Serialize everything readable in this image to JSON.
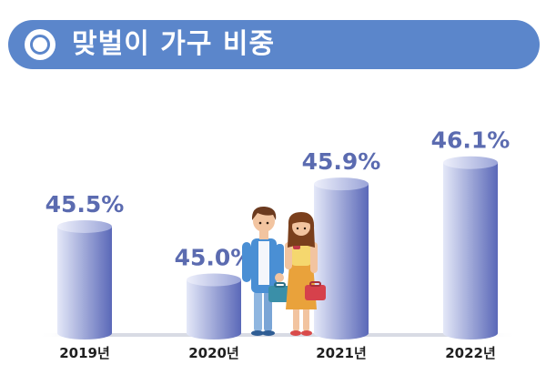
{
  "title": "맞벌이 가구 비중",
  "colors": {
    "banner": "#5b86cb",
    "label": "#5b6bb0",
    "bar_light": "#e4e8f8",
    "bar_dark": "#5a68b8"
  },
  "chart_data": {
    "type": "bar",
    "categories": [
      "2019년",
      "2020년",
      "2021년",
      "2022년"
    ],
    "values": [
      45.5,
      45.0,
      45.9,
      46.1
    ],
    "value_labels": [
      "45.5%",
      "45.0%",
      "45.9%",
      "46.1%"
    ],
    "title": "맞벌이 가구 비중",
    "xlabel": "",
    "ylabel": "",
    "ylim": [
      44.5,
      46.2
    ],
    "grid": false,
    "legend": "none"
  }
}
